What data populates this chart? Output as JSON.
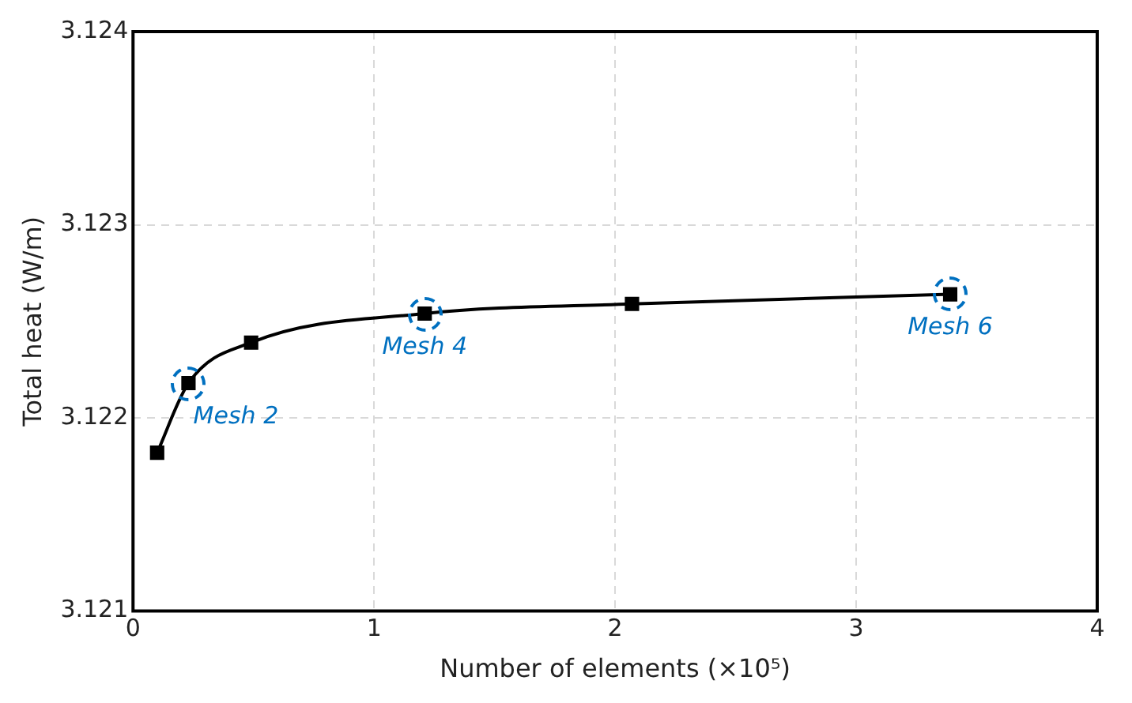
{
  "chart_data": {
    "type": "line",
    "xlabel": "Number of elements (×10⁵)",
    "ylabel": "Total heat (W/m)",
    "x": [
      0.1,
      0.23,
      0.49,
      1.21,
      2.07,
      3.39
    ],
    "series": [
      {
        "color": "#000000",
        "values": [
          3.12182,
          3.12218,
          3.12239,
          3.12254,
          3.12259,
          3.12264
        ]
      }
    ],
    "xlim": [
      0,
      4
    ],
    "xticks": [
      0,
      1,
      2,
      3,
      4
    ],
    "ylim": [
      3.121,
      3.124
    ],
    "yticks": [
      3.121,
      3.122,
      3.123,
      3.124
    ],
    "grid": true,
    "legend": false,
    "marker": "square",
    "line_style": "solid",
    "annotations": [
      {
        "text": "Mesh 2",
        "x": 0.23,
        "y": 3.12218
      },
      {
        "text": "Mesh 4",
        "x": 1.21,
        "y": 3.12254
      },
      {
        "text": "Mesh 6",
        "x": 3.39,
        "y": 3.12264
      }
    ]
  }
}
